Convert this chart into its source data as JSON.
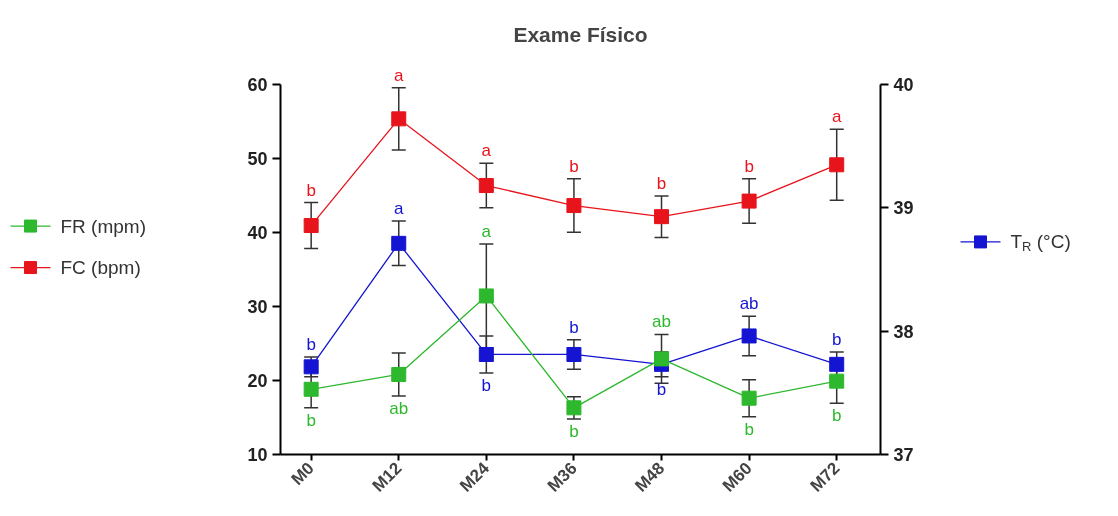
{
  "chart_data": {
    "type": "line",
    "title": "Exame Físico",
    "categories": [
      "M0",
      "M12",
      "M24",
      "M36",
      "M48",
      "M60",
      "M72"
    ],
    "series": [
      {
        "name": "FR (mpm)",
        "color": "#2db82d",
        "values": [
          18.8,
          20.8,
          31.4,
          16.3,
          22.9,
          17.6,
          19.9
        ],
        "errors": [
          2.5,
          2.9,
          7.0,
          1.5,
          3.3,
          2.5,
          3.0
        ],
        "value_labels": [
          "b",
          "ab",
          "a",
          "b",
          "ab",
          "b",
          "b"
        ]
      },
      {
        "name": "FC (bpm)",
        "color": "#e8141c",
        "values": [
          40.9,
          55.3,
          46.3,
          43.6,
          42.1,
          44.2,
          49.1
        ],
        "errors": [
          3.1,
          4.2,
          3.0,
          3.6,
          2.8,
          3.0,
          4.8
        ],
        "value_labels": [
          "b",
          "a",
          "a",
          "b",
          "b",
          "b",
          "a"
        ]
      },
      {
        "name": "T$_{R}$ (°C)",
        "color": "#1414d2",
        "axis": "y2",
        "values": [
          37.71,
          38.71,
          37.81,
          37.81,
          37.73,
          37.96,
          37.73
        ],
        "errors": [
          0.08,
          0.18,
          0.15,
          0.12,
          0.1,
          0.16,
          0.1
        ],
        "value_labels": [
          "b",
          "a",
          "b",
          "b",
          "b",
          "ab",
          "b"
        ]
      }
    ],
    "ylim": [
      10,
      60
    ],
    "yticks": [
      10,
      20,
      30,
      40,
      50,
      60
    ],
    "y2lim": [
      37,
      40
    ],
    "y2ticks": [
      37,
      38,
      39,
      40
    ],
    "marker": "square",
    "line_style": "solid",
    "grid": false,
    "legend": "left"
  }
}
